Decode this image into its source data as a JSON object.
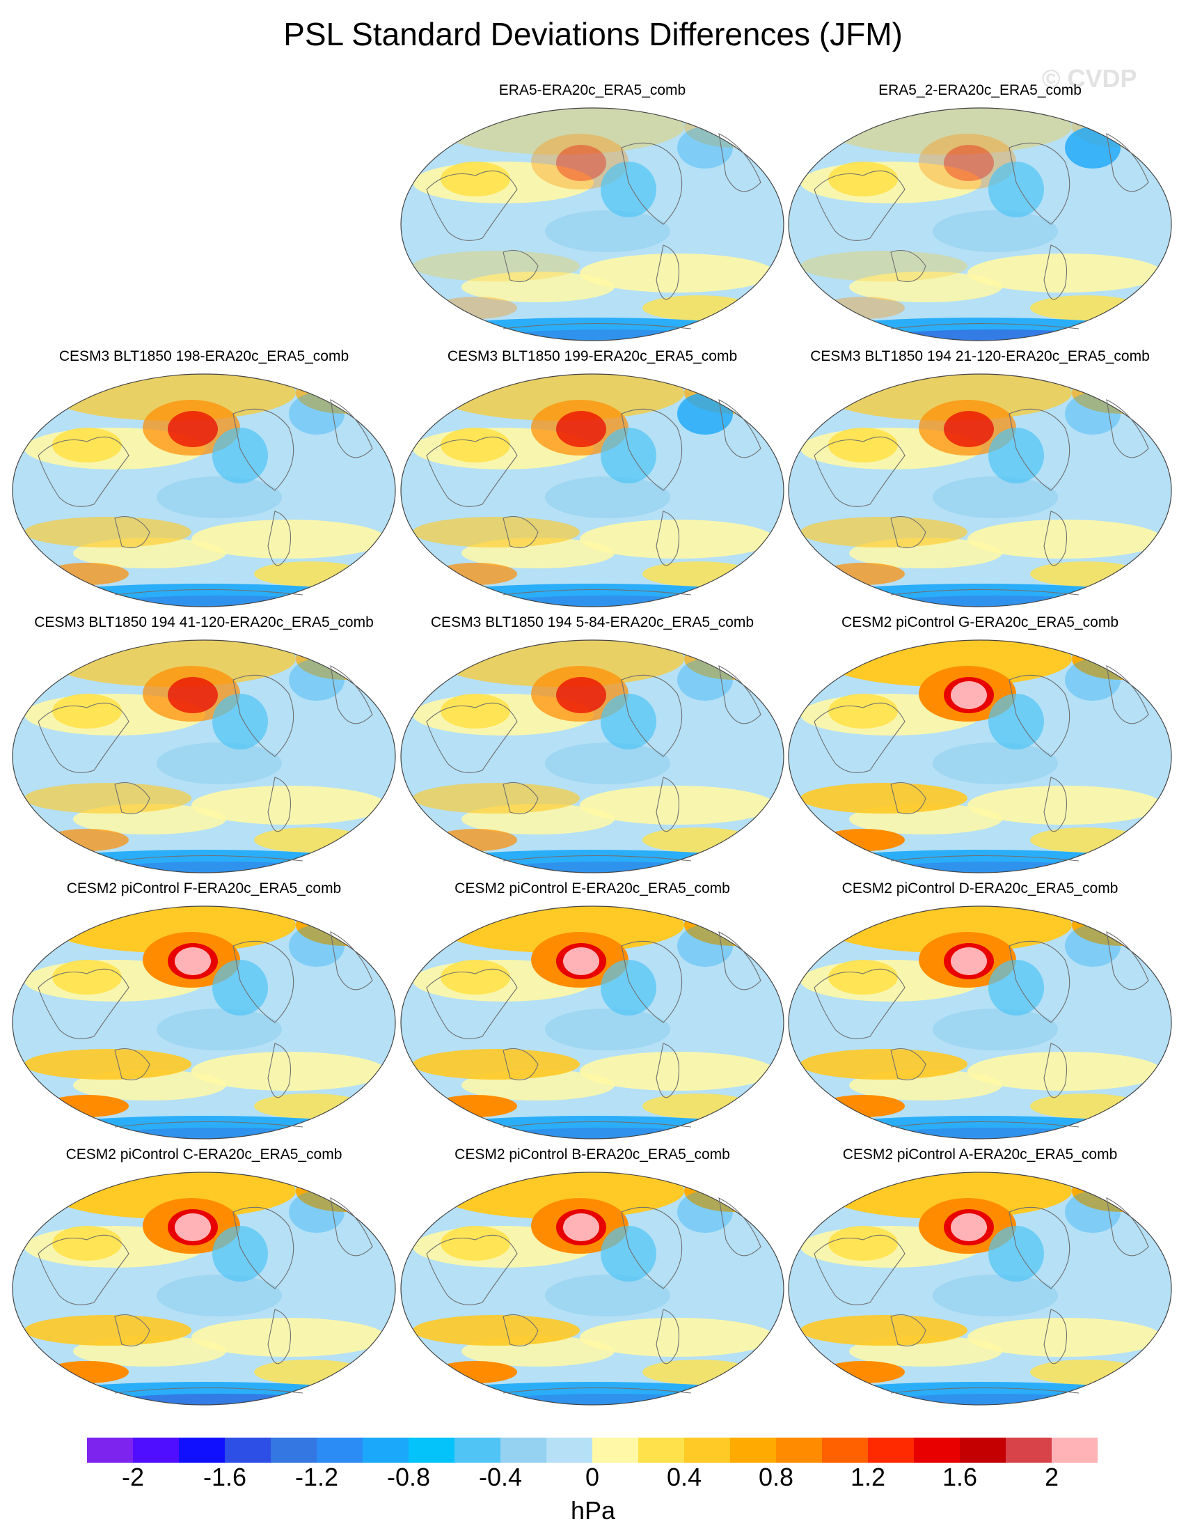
{
  "title": "PSL Standard Deviations Differences (JFM)",
  "watermark": "© CVDP",
  "colorbar": {
    "units": "hPa",
    "tick_labels": [
      "-2",
      "-1.6",
      "-1.2",
      "-0.8",
      "-0.4",
      "0",
      "0.4",
      "0.8",
      "1.2",
      "1.6",
      "2"
    ],
    "colors": [
      "#7d24ee",
      "#4f0eff",
      "#1010ff",
      "#2d4fe6",
      "#3476e2",
      "#2c8cf5",
      "#1ba8fa",
      "#04c3fb",
      "#50c5f5",
      "#95d1f0",
      "#b5e0f6",
      "#fff8a6",
      "#ffe24b",
      "#ffc926",
      "#ffaa00",
      "#ff8c00",
      "#ff6000",
      "#ff2a00",
      "#e80000",
      "#c40000",
      "#d8434a",
      "#ffb3b7"
    ]
  },
  "panels": [
    {
      "title": "ERA5-ERA20c_ERA5_comb"
    },
    {
      "title": "ERA5_2-ERA20c_ERA5_comb"
    },
    {
      "title": "CESM3 BLT1850 198-ERA20c_ERA5_comb"
    },
    {
      "title": "CESM3 BLT1850 199-ERA20c_ERA5_comb"
    },
    {
      "title": "CESM3 BLT1850 194 21-120-ERA20c_ERA5_comb"
    },
    {
      "title": "CESM3 BLT1850 194 41-120-ERA20c_ERA5_comb"
    },
    {
      "title": "CESM3 BLT1850 194 5-84-ERA20c_ERA5_comb"
    },
    {
      "title": "CESM2 piControl G-ERA20c_ERA5_comb"
    },
    {
      "title": "CESM2 piControl F-ERA20c_ERA5_comb"
    },
    {
      "title": "CESM2 piControl E-ERA20c_ERA5_comb"
    },
    {
      "title": "CESM2 piControl D-ERA20c_ERA5_comb"
    },
    {
      "title": "CESM2 piControl C-ERA20c_ERA5_comb"
    },
    {
      "title": "CESM2 piControl B-ERA20c_ERA5_comb"
    },
    {
      "title": "CESM2 piControl A-ERA20c_ERA5_comb"
    }
  ]
}
